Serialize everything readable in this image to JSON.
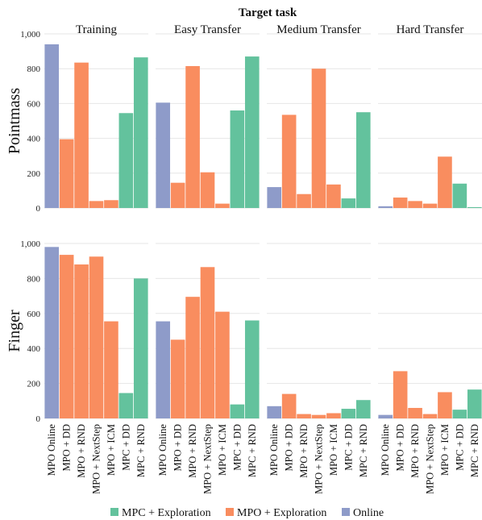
{
  "colors": {
    "online": "#8e9bc9",
    "mpo_exploration": "#f98d5f",
    "mpc_exploration": "#63c29d"
  },
  "chart_data": {
    "type": "bar",
    "title": "Target task",
    "columns": [
      "Training",
      "Easy Transfer",
      "Medium Transfer",
      "Hard Transfer"
    ],
    "rows": [
      "Pointmass",
      "Finger"
    ],
    "categories": [
      "MPO Online",
      "MPO + DD",
      "MPO + RND",
      "MPO + NextStep",
      "MPO + ICM",
      "MPC + DD",
      "MPC + RND"
    ],
    "category_groups": [
      "online",
      "mpo_exploration",
      "mpo_exploration",
      "mpo_exploration",
      "mpo_exploration",
      "mpc_exploration",
      "mpc_exploration"
    ],
    "ylim": [
      0,
      1000
    ],
    "yticks": [
      0,
      200,
      400,
      600,
      800,
      1000
    ],
    "ytick_labels": [
      "0",
      "200",
      "400",
      "600",
      "800",
      "1,000"
    ],
    "values": {
      "Pointmass": {
        "Training": [
          940,
          395,
          835,
          40,
          45,
          545,
          865
        ],
        "Easy Transfer": [
          605,
          145,
          815,
          205,
          25,
          560,
          870
        ],
        "Medium Transfer": [
          120,
          535,
          80,
          800,
          135,
          55,
          550
        ],
        "Hard Transfer": [
          10,
          60,
          40,
          25,
          295,
          140,
          5
        ]
      },
      "Finger": {
        "Training": [
          980,
          935,
          880,
          925,
          555,
          145,
          800
        ],
        "Easy Transfer": [
          555,
          450,
          695,
          865,
          610,
          80,
          560
        ],
        "Medium Transfer": [
          70,
          140,
          25,
          20,
          30,
          55,
          105
        ],
        "Hard Transfer": [
          20,
          270,
          60,
          25,
          150,
          50,
          165
        ]
      }
    },
    "legend": {
      "position": "bottom",
      "entries": [
        {
          "label": "MPC + Exploration",
          "key": "mpc_exploration"
        },
        {
          "label": "MPO + Exploration",
          "key": "mpo_exploration"
        },
        {
          "label": "Online",
          "key": "online"
        }
      ]
    },
    "grid": true
  }
}
